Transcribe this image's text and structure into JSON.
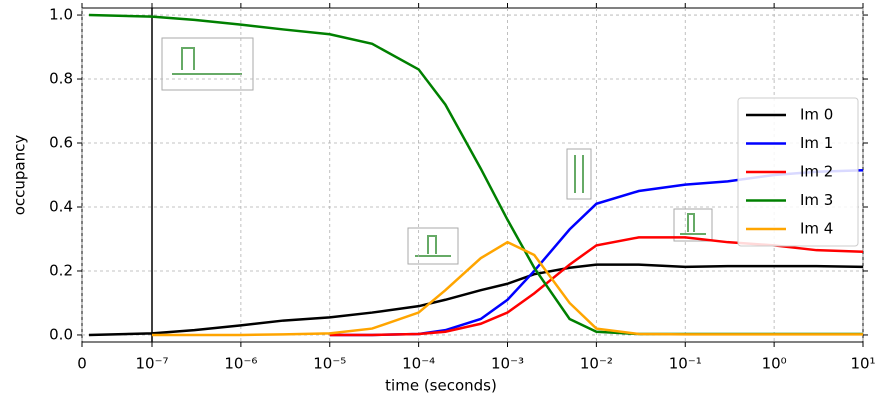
{
  "chart_data": {
    "type": "line",
    "x_label": "time (seconds)",
    "y_label": "occupancy",
    "xscale": "symlog",
    "linthresh": 1e-07,
    "x": [
      1e-08,
      1e-07,
      3e-07,
      1e-06,
      3e-06,
      1e-05,
      3e-05,
      0.0001,
      0.0002,
      0.0005,
      0.001,
      0.002,
      0.005,
      0.01,
      0.03,
      0.1,
      0.3,
      1,
      3,
      10
    ],
    "series": [
      {
        "name": "Im 0",
        "color": "#000000",
        "values": [
          0.0,
          0.005,
          0.015,
          0.03,
          0.045,
          0.055,
          0.07,
          0.09,
          0.11,
          0.14,
          0.16,
          0.19,
          0.21,
          0.22,
          0.22,
          0.213,
          0.215,
          0.215,
          0.215,
          0.213
        ]
      },
      {
        "name": "Im 1",
        "color": "#0000ff",
        "values": [
          null,
          null,
          null,
          null,
          null,
          0.0,
          0.0,
          0.003,
          0.015,
          0.05,
          0.11,
          0.2,
          0.33,
          0.41,
          0.45,
          0.47,
          0.48,
          0.5,
          0.51,
          0.515
        ]
      },
      {
        "name": "Im 2",
        "color": "#ff0000",
        "values": [
          null,
          null,
          null,
          null,
          null,
          0.0,
          0.0,
          0.003,
          0.01,
          0.035,
          0.07,
          0.13,
          0.22,
          0.28,
          0.305,
          0.305,
          0.29,
          0.28,
          0.265,
          0.26
        ]
      },
      {
        "name": "Im 3",
        "color": "#008000",
        "values": [
          1.0,
          0.995,
          0.985,
          0.97,
          0.955,
          0.94,
          0.91,
          0.83,
          0.72,
          0.52,
          0.36,
          0.21,
          0.05,
          0.01,
          0.003,
          0.003,
          0.003,
          0.003,
          0.003,
          0.003
        ]
      },
      {
        "name": "Im 4",
        "color": "#ffa500",
        "values": [
          null,
          0.0,
          0.0,
          0.0,
          0.002,
          0.005,
          0.02,
          0.07,
          0.14,
          0.24,
          0.29,
          0.25,
          0.1,
          0.02,
          0.003,
          0.002,
          0.002,
          0.002,
          0.002,
          0.002
        ]
      }
    ],
    "vline": 1e-07,
    "xlim": [
      0,
      10
    ],
    "ylim": [
      -0.022,
      1.022
    ],
    "xticks": [
      0,
      {
        "value": 1e-07,
        "label": "10⁻⁷"
      },
      {
        "value": 1e-06,
        "label": "10⁻⁶"
      },
      {
        "value": 1e-05,
        "label": "10⁻⁵"
      },
      {
        "value": 0.0001,
        "label": "10⁻⁴"
      },
      {
        "value": 0.001,
        "label": "10⁻³"
      },
      {
        "value": 0.01,
        "label": "10⁻²"
      },
      {
        "value": 0.1,
        "label": "10⁻¹"
      },
      {
        "value": 1,
        "label": "10⁰"
      },
      {
        "value": 10,
        "label": "10¹"
      }
    ],
    "yticks": [
      {
        "value": 0,
        "label": "0.0"
      },
      0.2,
      0.4,
      0.6,
      0.8,
      {
        "value": 1,
        "label": "1.0"
      }
    ],
    "grid": true,
    "legend": "right"
  }
}
